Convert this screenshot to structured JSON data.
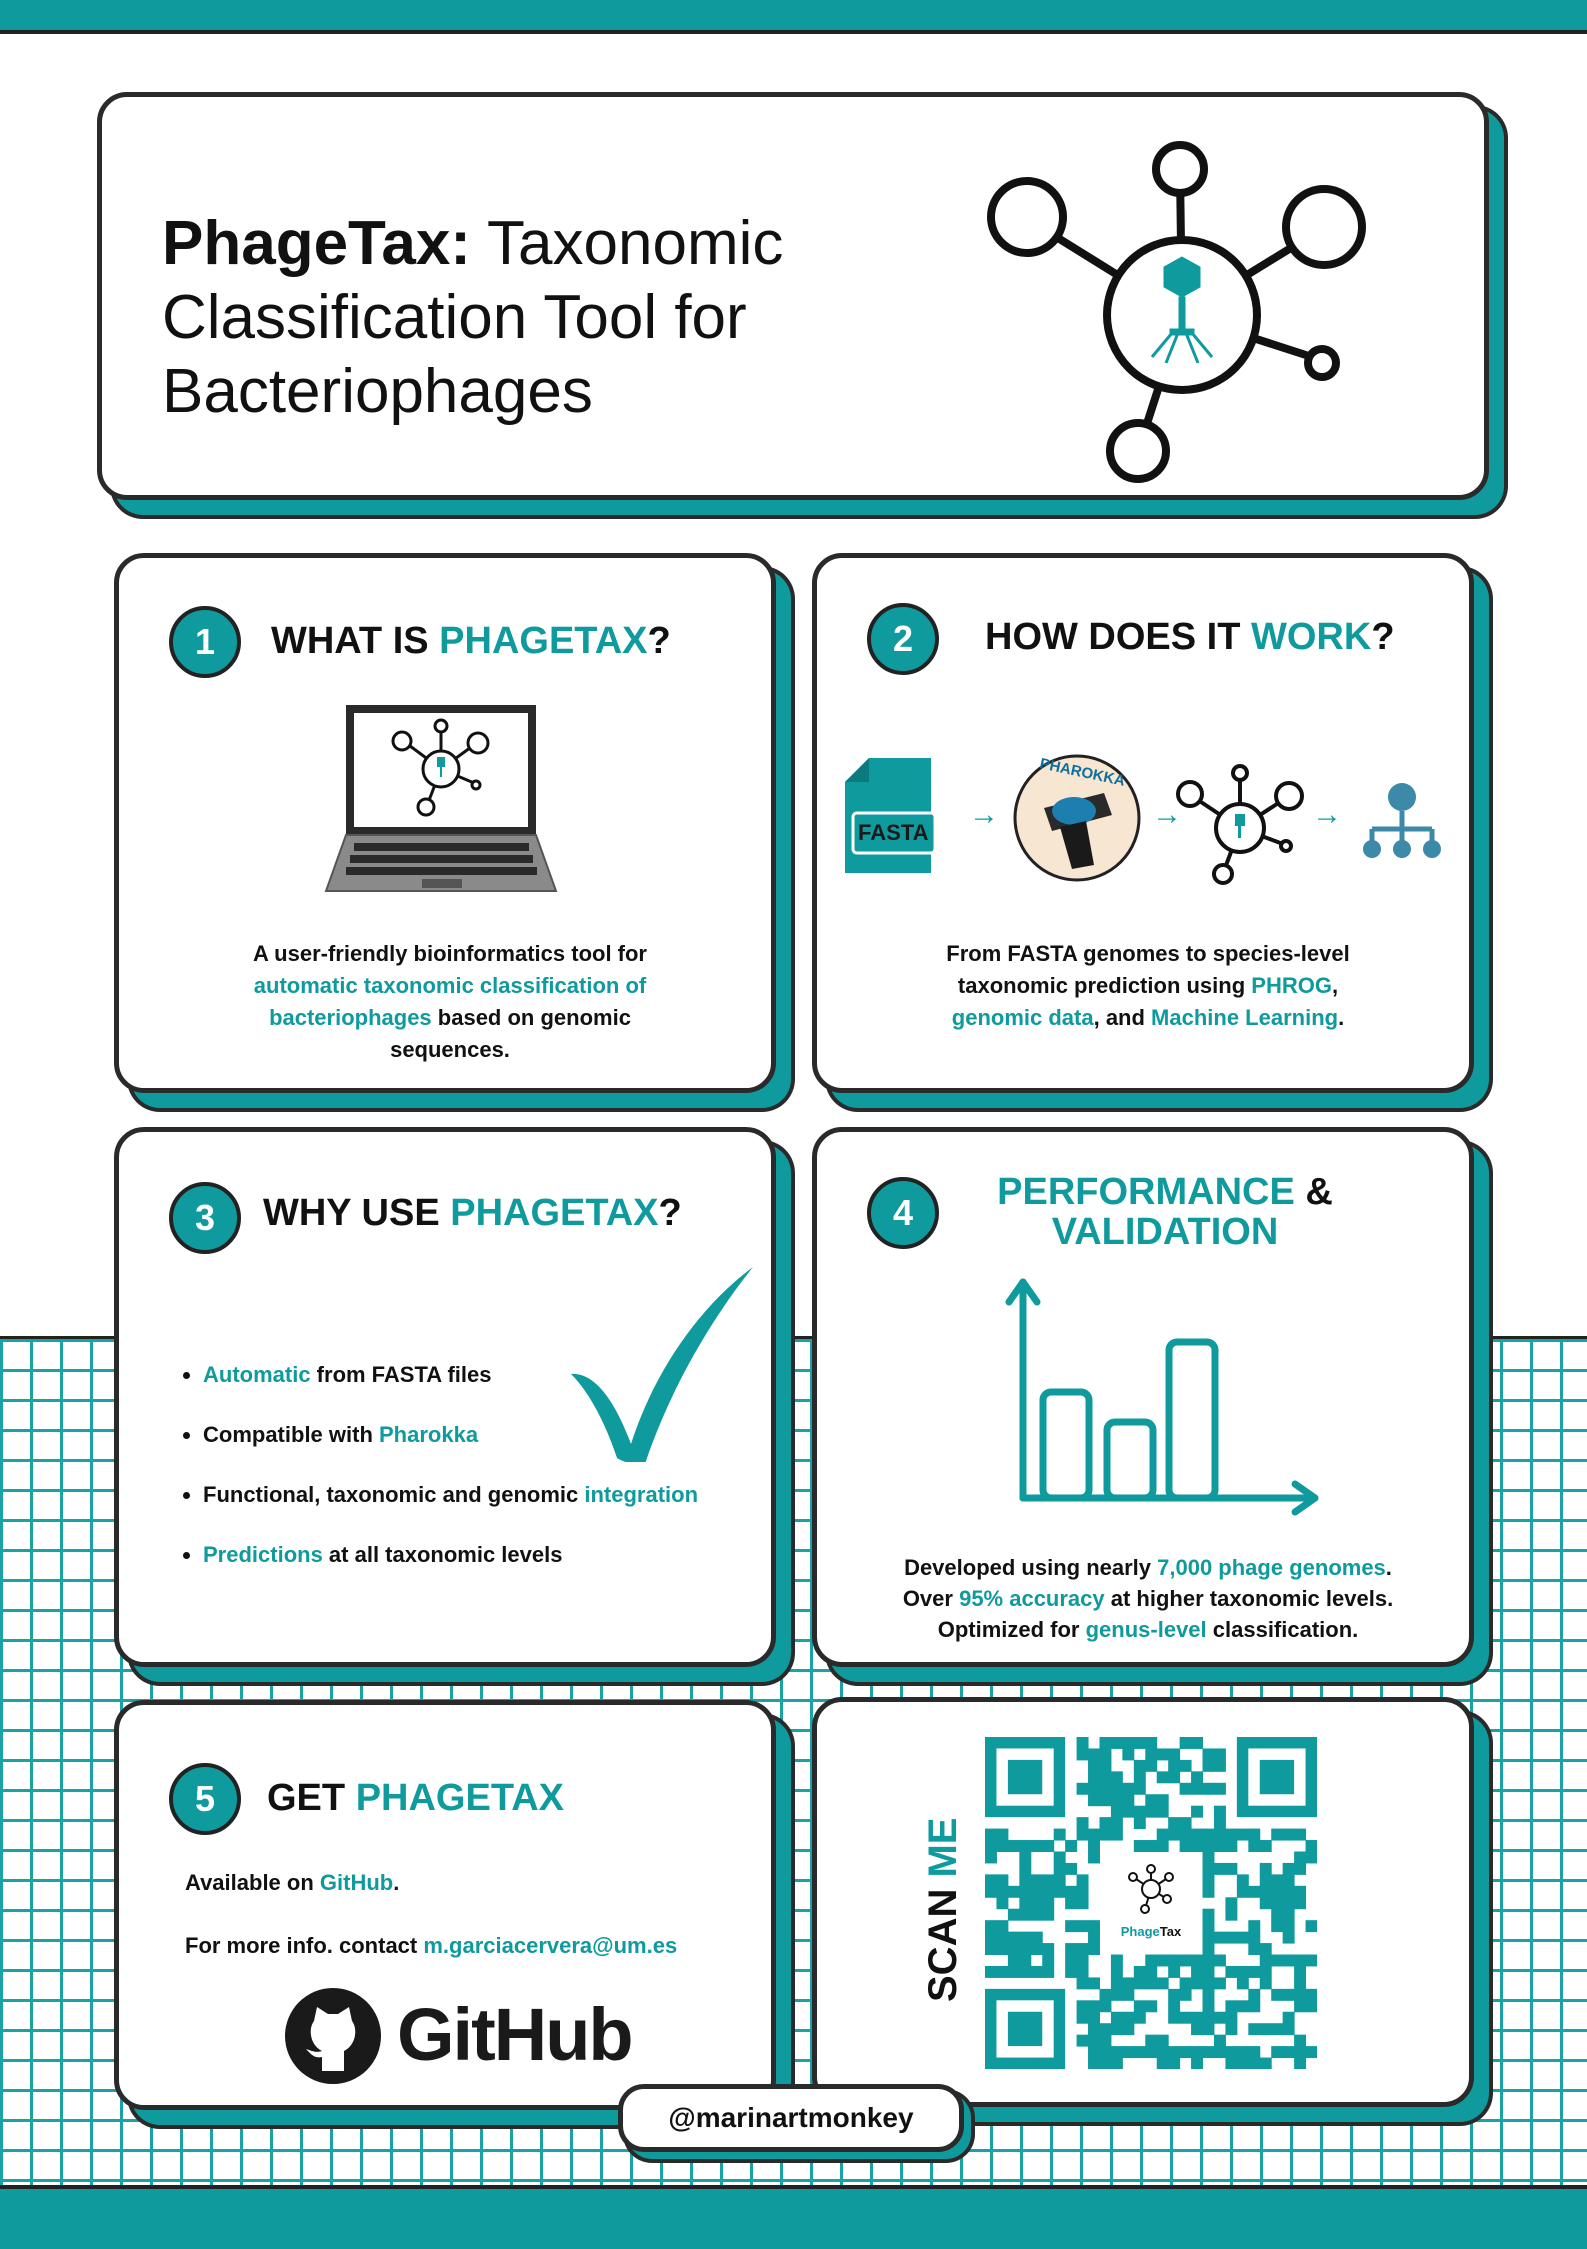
{
  "hero": {
    "title_bold": "PhageTax:",
    "title_rest": " Taxonomic Classification Tool for Bacteriophages",
    "title_line1_rest": " Taxonomic",
    "title_line2": "Classification Tool for",
    "title_line3": "Bacteriophages"
  },
  "sections": [
    {
      "number": "1",
      "heading_black": "WHAT IS ",
      "heading_teal": "PHAGETAX",
      "heading_end": "?",
      "body": [
        {
          "text": "A user-friendly bioinformatics tool for",
          "teal": false
        },
        {
          "text": "automatic taxonomic classification of",
          "teal": true
        },
        {
          "text": "bacteriophages",
          "teal": true
        },
        {
          "text": " based on genomic",
          "teal": false
        },
        {
          "text": "sequences.",
          "teal": false
        }
      ]
    },
    {
      "number": "2",
      "heading_black": "HOW DOES IT ",
      "heading_teal": "WORK",
      "heading_end": "?",
      "fasta_label": "FASTA",
      "pharokka_label": "PHAROKKA",
      "body": [
        {
          "text": "From FASTA genomes to species-level",
          "teal": false
        },
        {
          "text": "taxonomic prediction using ",
          "teal": false
        },
        {
          "text": "PHROG",
          "teal": true
        },
        {
          "text": ",",
          "teal": false
        },
        {
          "text": "genomic data",
          "teal": true
        },
        {
          "text": ", and ",
          "teal": false
        },
        {
          "text": "Machine Learning",
          "teal": true
        },
        {
          "text": ".",
          "teal": false
        }
      ]
    },
    {
      "number": "3",
      "heading_black": "WHY USE ",
      "heading_teal": "PHAGETAX",
      "heading_end": "?",
      "bullets": [
        {
          "teal_first": "Automatic",
          "rest": " from FASTA files"
        },
        {
          "pre": "Compatible with ",
          "teal": "Pharokka"
        },
        {
          "pre": "Functional, taxonomic and genomic ",
          "teal": "integration"
        },
        {
          "teal_first": "Predictions",
          "rest": " at all taxonomic levels"
        }
      ]
    },
    {
      "number": "4",
      "heading_teal_1": "PERFORMANCE",
      "heading_amp": " &",
      "heading_teal_2": "VALIDATION",
      "bar_values": [
        0.53,
        0.38,
        0.78
      ],
      "body": [
        {
          "text": "Developed using nearly ",
          "teal": false
        },
        {
          "text": "7,000 phage genomes",
          "teal": true
        },
        {
          "text": ".",
          "teal": false
        },
        {
          "text": "Over ",
          "teal": false
        },
        {
          "text": "95% accuracy",
          "teal": true
        },
        {
          "text": " at higher taxonomic levels.",
          "teal": false
        },
        {
          "text": "Optimized for ",
          "teal": false
        },
        {
          "text": "genus-level",
          "teal": true
        },
        {
          "text": " classification.",
          "teal": false
        }
      ]
    },
    {
      "number": "5",
      "heading_black": "GET ",
      "heading_teal": "PHAGETAX",
      "line1_pre": "Available on ",
      "line1_teal": "GitHub",
      "line1_end": ".",
      "line2_pre": "For more info. contact ",
      "line2_teal": "m.garciacervera@um.es",
      "github_wordmark": "GitHub"
    }
  ],
  "qr": {
    "scan_black": "SCAN ",
    "scan_teal": "ME",
    "center_label_teal": "Phage",
    "center_label_black": "Tax"
  },
  "footer": {
    "handle": "@marinartmonkey"
  },
  "colors": {
    "accent": "#0f9a9e",
    "outline": "#2a2a2a"
  },
  "icons": [
    "phage-network-icon",
    "laptop-icon",
    "fasta-file-icon",
    "pharokka-logo",
    "tree-icon",
    "checkmark-icon",
    "bar-chart-icon",
    "github-logo",
    "qr-code"
  ]
}
